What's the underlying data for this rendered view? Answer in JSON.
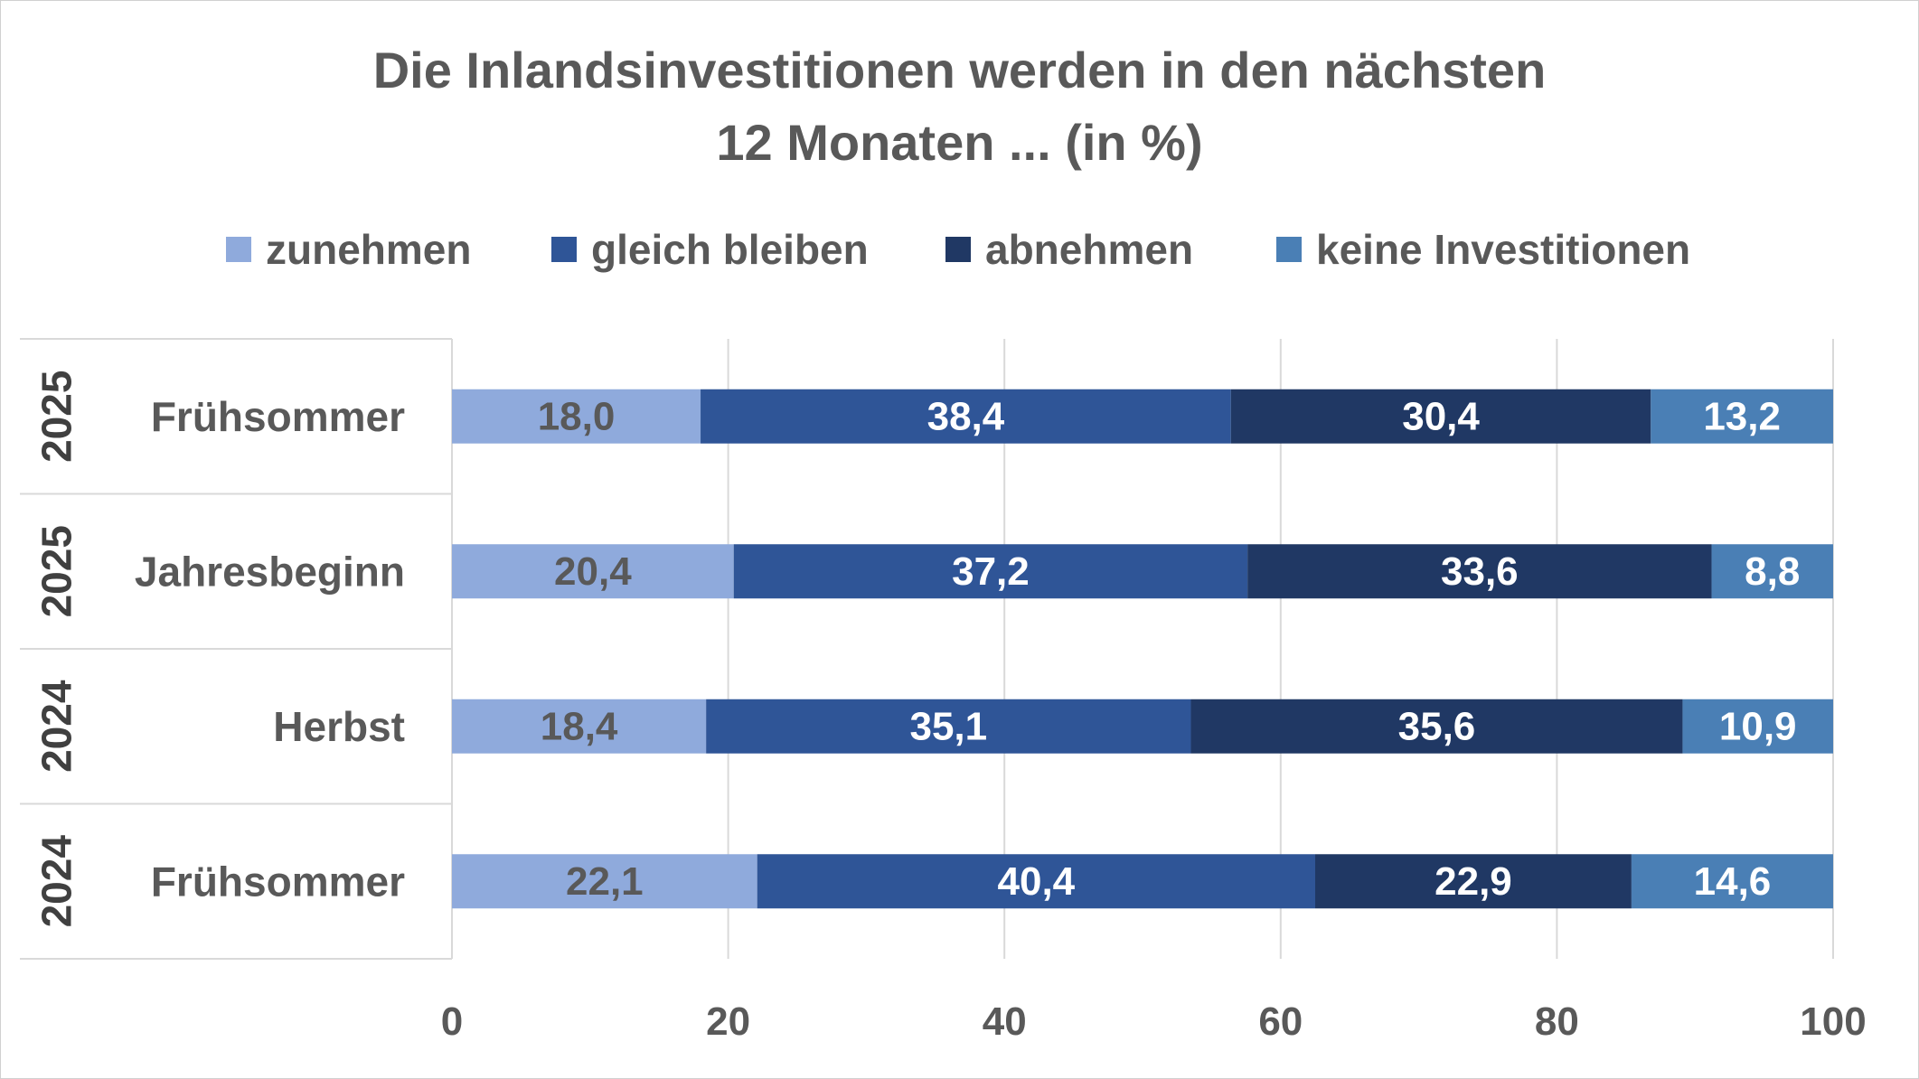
{
  "chart_data": {
    "type": "bar",
    "orientation": "horizontal",
    "stacked": true,
    "title_lines": [
      "Die Inlandsinvestitionen werden in den nächsten",
      "12 Monaten ... (in %)"
    ],
    "legend_position": "top",
    "grid": true,
    "xlim": [
      0,
      100
    ],
    "x_ticks": [
      0,
      20,
      40,
      60,
      80,
      100
    ],
    "categories": [
      {
        "year": "2025",
        "label": "Frühsommer"
      },
      {
        "year": "2025",
        "label": "Jahresbeginn"
      },
      {
        "year": "2024",
        "label": "Herbst"
      },
      {
        "year": "2024",
        "label": "Frühsommer"
      }
    ],
    "series": [
      {
        "name": "zunehmen",
        "color": "#8faadc",
        "label_color": "#595959",
        "values": [
          18.0,
          20.4,
          18.4,
          22.1
        ],
        "labels": [
          "18,0",
          "20,4",
          "18,4",
          "22,1"
        ]
      },
      {
        "name": "gleich bleiben",
        "color": "#2f5597",
        "label_color": "#ffffff",
        "values": [
          38.4,
          37.2,
          35.1,
          40.4
        ],
        "labels": [
          "38,4",
          "37,2",
          "35,1",
          "40,4"
        ]
      },
      {
        "name": "abnehmen",
        "color": "#203864",
        "label_color": "#ffffff",
        "values": [
          30.4,
          33.6,
          35.6,
          22.9
        ],
        "labels": [
          "30,4",
          "33,6",
          "35,6",
          "22,9"
        ]
      },
      {
        "name": "keine Investitionen",
        "color": "#4a7fb5",
        "label_color": "#ffffff",
        "values": [
          13.2,
          8.8,
          10.9,
          14.6
        ],
        "labels": [
          "13,2",
          "8,8",
          "10,9",
          "14,6"
        ]
      }
    ]
  }
}
